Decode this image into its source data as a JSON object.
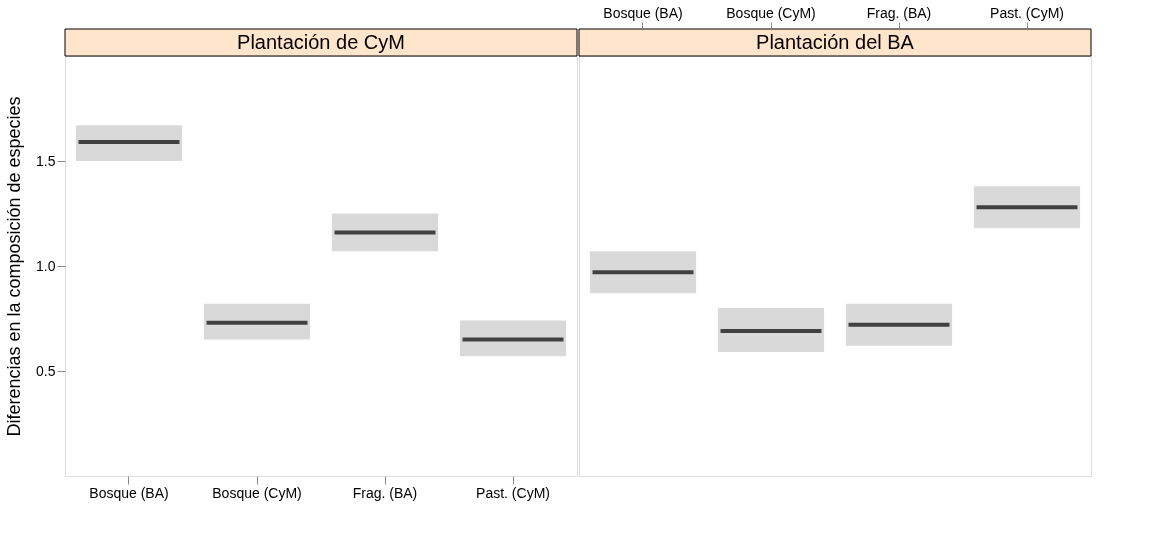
{
  "chart_data": [
    {
      "type": "box",
      "title": "Plantación de CyM",
      "ylabel": "Diferencias en la composición de especies",
      "categories": [
        "Bosque (BA)",
        "Bosque (CyM)",
        "Frag. (BA)",
        "Past. (CyM)"
      ],
      "boxes": [
        {
          "low": 1.5,
          "q1": 1.5,
          "median": 1.59,
          "q3": 1.67,
          "high": 1.67
        },
        {
          "low": 0.65,
          "q1": 0.65,
          "median": 0.73,
          "q3": 0.82,
          "high": 0.82
        },
        {
          "low": 1.07,
          "q1": 1.07,
          "median": 1.16,
          "q3": 1.25,
          "high": 1.25
        },
        {
          "low": 0.57,
          "q1": 0.57,
          "median": 0.65,
          "q3": 0.74,
          "high": 0.74
        }
      ],
      "ylim": [
        0,
        2
      ],
      "yticks": [
        0.5,
        {
          "value": 1,
          "label": "1.0"
        },
        1.5
      ],
      "grid": false
    },
    {
      "type": "box",
      "title": "Plantación del BA",
      "categories": [
        "Bosque (BA)",
        "Bosque (CyM)",
        "Frag. (BA)",
        "Past. (CyM)"
      ],
      "boxes": [
        {
          "low": 0.87,
          "q1": 0.87,
          "median": 0.97,
          "q3": 1.07,
          "high": 1.07
        },
        {
          "low": 0.59,
          "q1": 0.59,
          "median": 0.69,
          "q3": 0.8,
          "high": 0.8
        },
        {
          "low": 0.62,
          "q1": 0.62,
          "median": 0.72,
          "q3": 0.82,
          "high": 0.82
        },
        {
          "low": 1.18,
          "q1": 1.18,
          "median": 1.28,
          "q3": 1.38,
          "high": 1.38
        }
      ],
      "ylim": [
        0,
        2
      ],
      "grid": false,
      "tick_labels": "x"
    }
  ]
}
